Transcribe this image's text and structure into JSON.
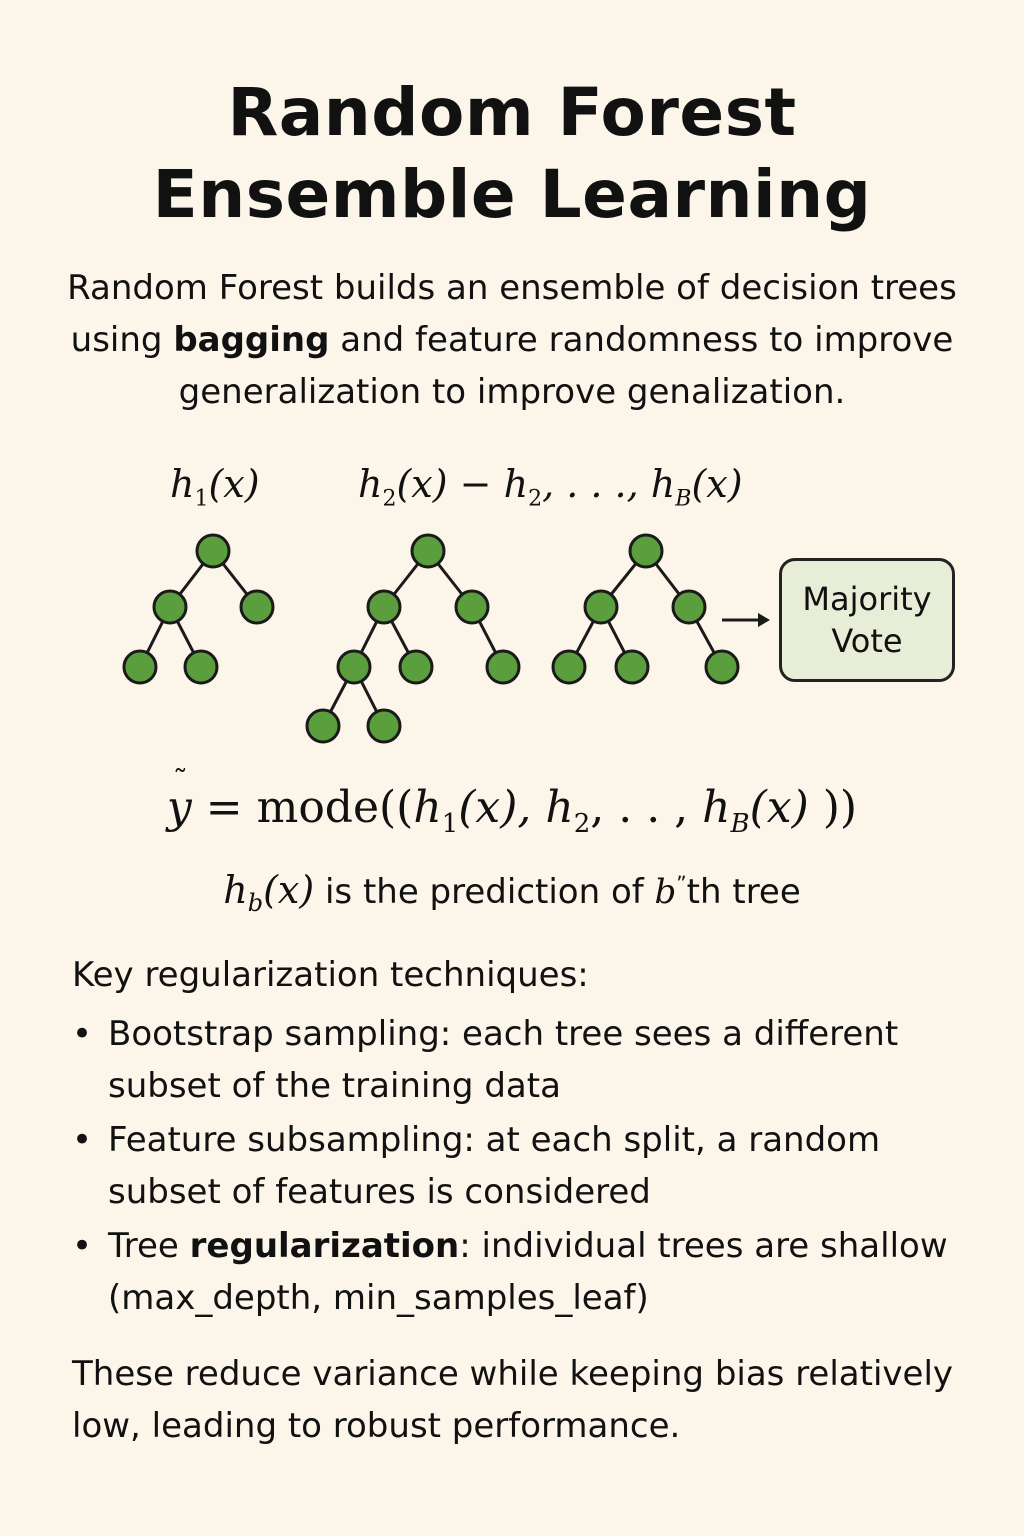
{
  "title_line1": "Random Forest",
  "title_line2": "Ensemble Learning",
  "intro": {
    "part1": "Random Forest builds an ensemble of decision trees using ",
    "bold": "bagging",
    "part2": " and feature randomness to improve generalization to improve genalization."
  },
  "tree_labels": {
    "first": {
      "h": "h",
      "sub": "1",
      "arg": "(x)"
    },
    "second": {
      "h": "h",
      "sub": "2",
      "arg": "(x) − ",
      "h2": "h",
      "sub2": "2",
      "sep": ", . . ., ",
      "h3": "h",
      "sub3": "B",
      "arg3": "(x)"
    }
  },
  "vote_box": {
    "line1": "Majority",
    "line2": "Vote"
  },
  "node_color": "#5a9e3e",
  "formula": {
    "lhs": "y",
    "eq": " = ",
    "func": "mode",
    "open": "((",
    "t1": "h",
    "s1": "1",
    "a1": "(x), ",
    "t2": "h",
    "s2": "2",
    "a2": ", . . , ",
    "t3": "h",
    "s3": "B",
    "a3": "(x)",
    "close": " ))"
  },
  "formula_note": {
    "h": "h",
    "sub": "b",
    "arg": "(x)",
    "text": " is the prediction of ",
    "b": "b",
    "sup": "ˮ",
    "tail": "th tree"
  },
  "key_heading": "Key regularization techniques:",
  "bullets": [
    {
      "pre": "Bootstrap sampling: each tree sees a different subset of the training data",
      "bold": "",
      "post": ""
    },
    {
      "pre": "Feature subsampling: at each split, a random subset of features is considered",
      "bold": "",
      "post": ""
    },
    {
      "pre": "Tree ",
      "bold": "regularization",
      "post": ": individual trees are shallow (max_depth,  min_samples_leaf)"
    }
  ],
  "conclusion": "These reduce variance while keeping bias relatively low, leading to robust performance."
}
